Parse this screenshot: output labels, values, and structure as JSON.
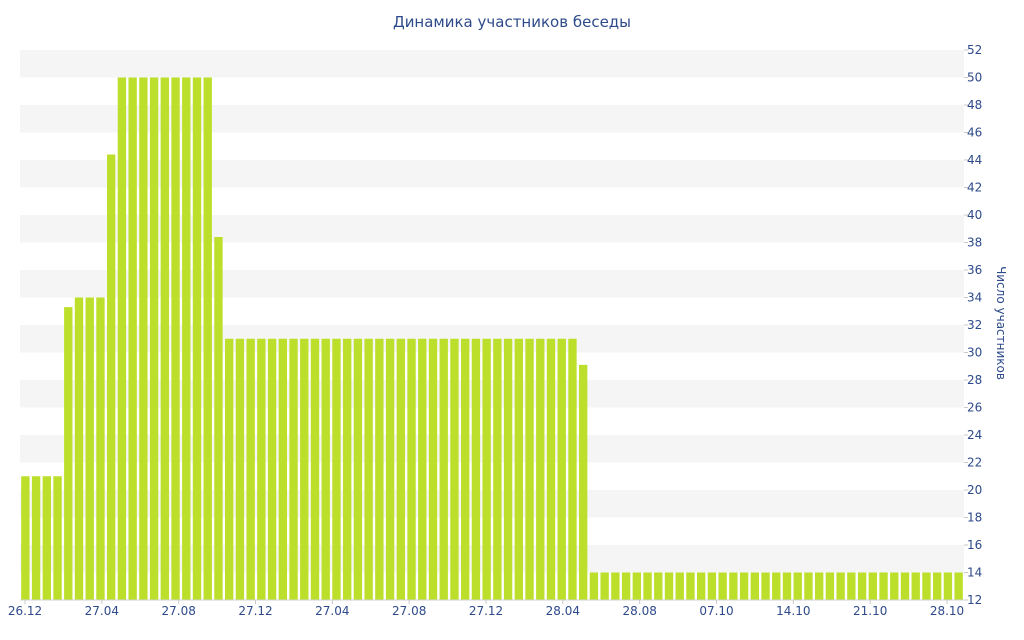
{
  "chart_data": {
    "type": "bar",
    "title": "Динамика участников беседы",
    "xlabel": "",
    "ylabel": "Число участников",
    "ylim": [
      12,
      52
    ],
    "y_axis_side": "right",
    "y_ticks": [
      12,
      14,
      16,
      18,
      20,
      22,
      24,
      26,
      28,
      30,
      32,
      34,
      36,
      38,
      40,
      42,
      44,
      46,
      48,
      50,
      52
    ],
    "x_tick_labels": [
      "26.12",
      "27.04",
      "27.08",
      "27.12",
      "27.04",
      "27.08",
      "27.12",
      "28.04",
      "28.08",
      "07.10",
      "14.10",
      "21.10",
      "28.10"
    ],
    "grid": "alternating horizontal bands",
    "colors": {
      "bar": "#bcdf2b",
      "band": "#f5f5f5",
      "text": "#2d4a8a"
    },
    "values": [
      21,
      21,
      21,
      21,
      33.3,
      34,
      34,
      34,
      44.4,
      50,
      50,
      50,
      50,
      50,
      50,
      50,
      50,
      50,
      38.4,
      31,
      31,
      31,
      31,
      31,
      31,
      31,
      31,
      31,
      31,
      31,
      31,
      31,
      31,
      31,
      31,
      31,
      31,
      31,
      31,
      31,
      31,
      31,
      31,
      31,
      31,
      31,
      31,
      31,
      31,
      31,
      31,
      31,
      29.1,
      14,
      14,
      14,
      14,
      14,
      14,
      14,
      14,
      14,
      14,
      14,
      14,
      14,
      14,
      14,
      14,
      14,
      14,
      14,
      14,
      14,
      14,
      14,
      14,
      14,
      14,
      14,
      14,
      14,
      14,
      14,
      14,
      14,
      14,
      14
    ]
  }
}
